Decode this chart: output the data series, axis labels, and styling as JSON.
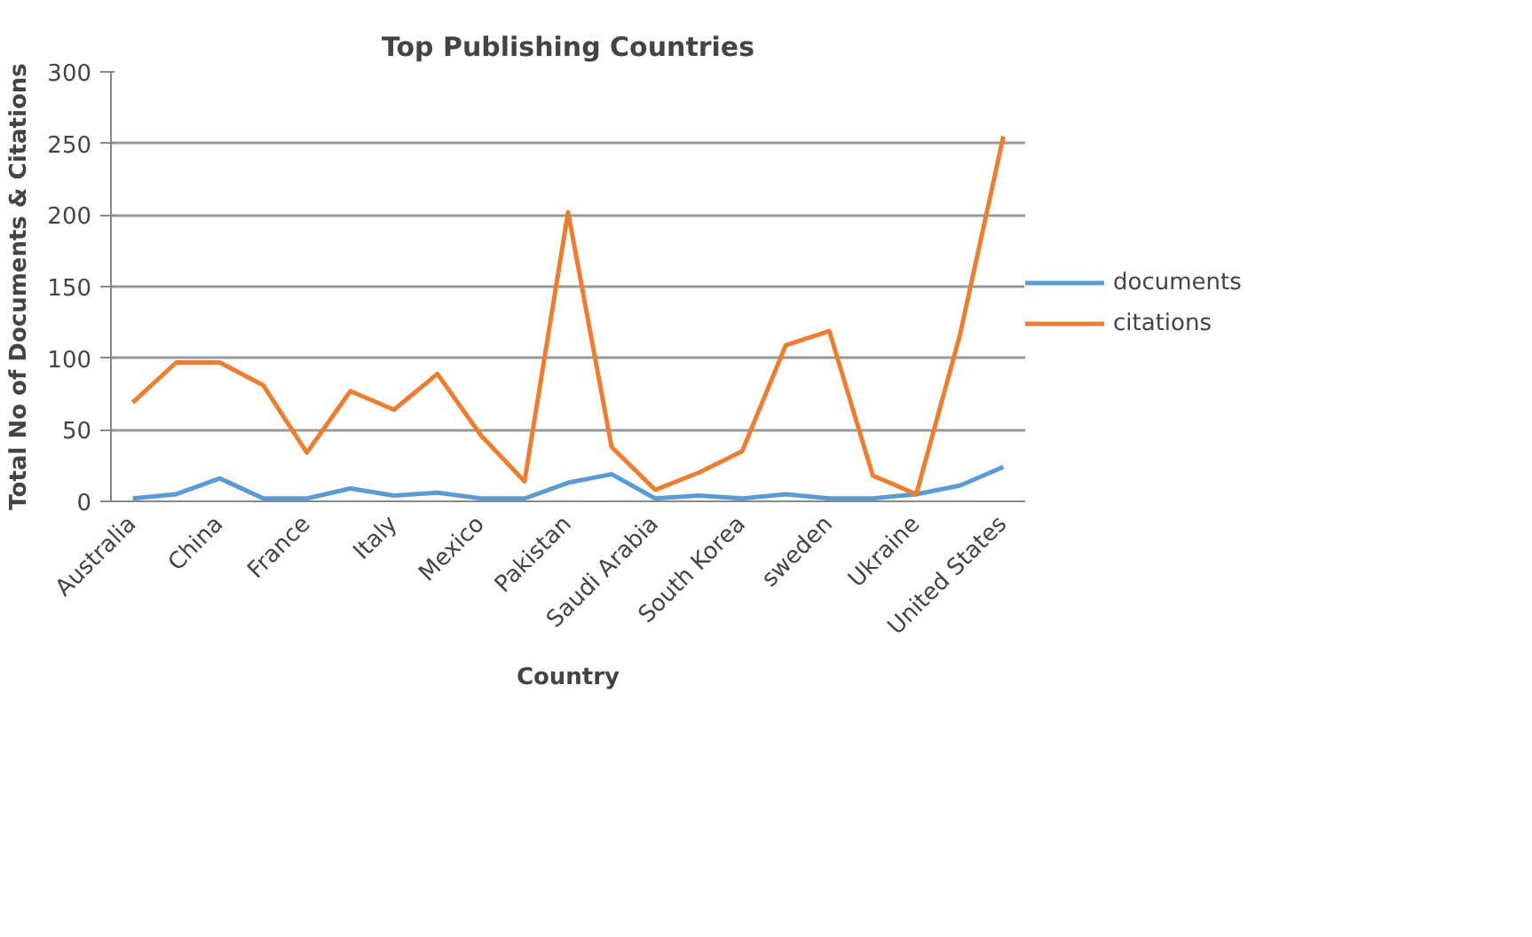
{
  "chart_data": {
    "type": "line",
    "title": "Top Publishing Countries",
    "xlabel": "Country",
    "ylabel": "Total No of Documents & Citations",
    "categories": [
      "Australia",
      null,
      "China",
      null,
      "France",
      null,
      "Italy",
      null,
      "Mexico",
      null,
      "Pakistan",
      null,
      "Saudi Arabia",
      null,
      "South Korea",
      null,
      "sweden",
      null,
      "Ukraine",
      null,
      "United States"
    ],
    "series": [
      {
        "name": "documents",
        "color": "#5b9bd5",
        "values": [
          2,
          5,
          16,
          2,
          2,
          9,
          4,
          6,
          2,
          2,
          13,
          19,
          2,
          4,
          2,
          5,
          2,
          2,
          5,
          11,
          24
        ]
      },
      {
        "name": "citations",
        "color": "#ed7d31",
        "values": [
          69,
          97,
          97,
          81,
          34,
          77,
          64,
          89,
          46,
          14,
          202,
          38,
          8,
          20,
          35,
          109,
          119,
          18,
          5,
          116,
          255
        ]
      }
    ],
    "ylim": [
      0,
      300
    ],
    "yticks": [
      0,
      50,
      100,
      150,
      200,
      250,
      300
    ],
    "grid": "y",
    "legend": "right",
    "marker": "none",
    "line_style": "solid"
  }
}
